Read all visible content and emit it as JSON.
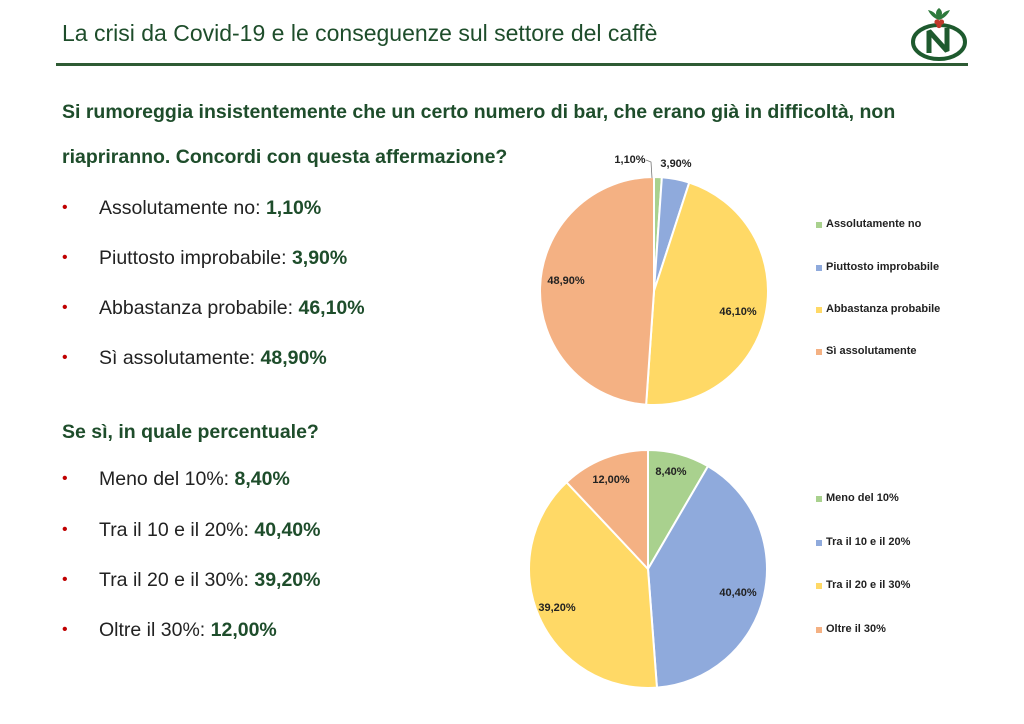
{
  "header": {
    "title": "La crisi da Covid-19 e le conseguenze sul settore del caffè"
  },
  "section1": {
    "question_line1": "Si rumoreggia insistentemente che un certo numero di bar, che erano già in difficoltà, non",
    "question_line2": "riapriranno. Concordi con questa affermazione?",
    "items": [
      {
        "label": "Assolutamente no: ",
        "value": "1,10%"
      },
      {
        "label": "Piuttosto improbabile: ",
        "value": "3,90%"
      },
      {
        "label": "Abbastanza probabile: ",
        "value": "46,10%"
      },
      {
        "label": "Sì assolutamente: ",
        "value": "48,90%"
      }
    ]
  },
  "section2": {
    "question": "Se sì, in quale percentuale?",
    "items": [
      {
        "label": "Meno del 10%: ",
        "value": "8,40%"
      },
      {
        "label": "Tra il 10 e il 20%: ",
        "value": "40,40%"
      },
      {
        "label": "Tra il 20 e il 30%: ",
        "value": "39,20%"
      },
      {
        "label": "Oltre il 30%: ",
        "value": "12,00%"
      }
    ]
  },
  "colors": {
    "brand_green": "#1e4d2b",
    "bullet_red": "#c00000"
  },
  "chart_data": [
    {
      "type": "pie",
      "title": "",
      "categories": [
        "Assolutamente no",
        "Piuttosto improbabile",
        "Abbastanza probabile",
        "Sì assolutamente"
      ],
      "values": [
        1.1,
        3.9,
        46.1,
        48.9
      ],
      "data_labels": [
        "1,10%",
        "3,90%",
        "46,10%",
        "48,90%"
      ],
      "colors": [
        "#a9d18e",
        "#8faadc",
        "#ffd966",
        "#f4b183"
      ],
      "legend_position": "right"
    },
    {
      "type": "pie",
      "title": "",
      "categories": [
        "Meno del 10%",
        "Tra il 10 e il 20%",
        "Tra il 20 e il 30%",
        "Oltre il 30%"
      ],
      "values": [
        8.4,
        40.4,
        39.2,
        12.0
      ],
      "data_labels": [
        "8,40%",
        "40,40%",
        "39,20%",
        "12,00%"
      ],
      "colors": [
        "#a9d18e",
        "#8faadc",
        "#ffd966",
        "#f4b183"
      ],
      "legend_position": "right"
    }
  ]
}
